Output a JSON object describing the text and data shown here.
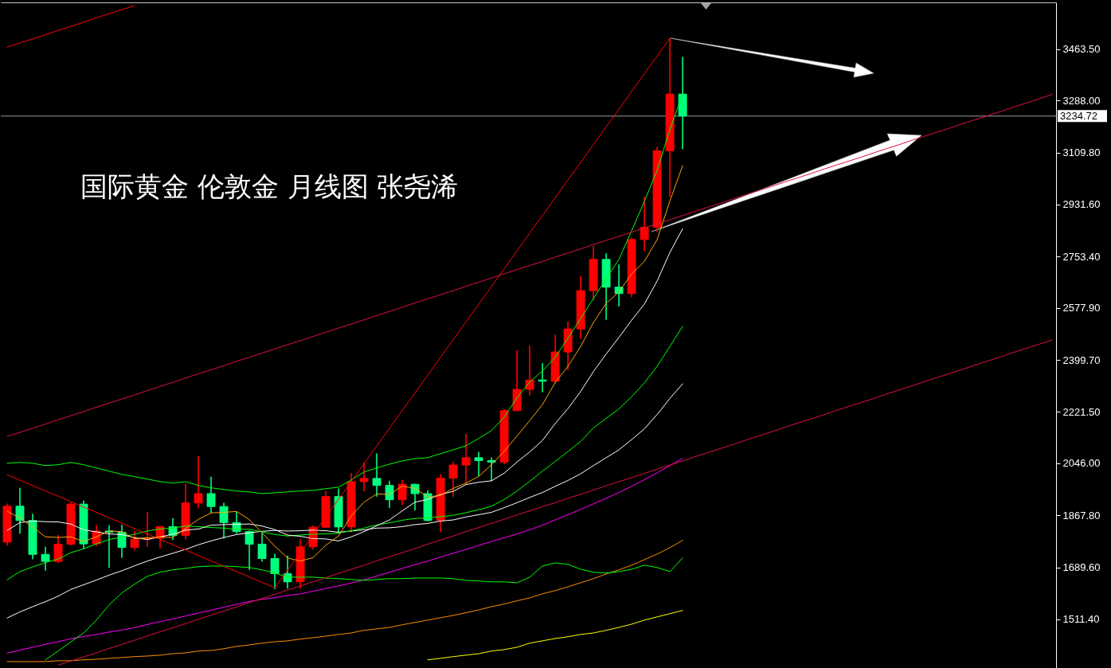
{
  "chart_data": {
    "type": "candlestick",
    "title": "国际黄金 伦敦金 月线图  张尧浠",
    "categories": [
      null,
      null,
      null,
      null,
      null,
      null,
      null,
      null,
      null,
      null,
      null,
      null,
      null,
      null,
      null,
      null,
      null,
      null,
      null,
      null,
      null,
      null,
      null,
      null,
      null,
      null,
      null,
      null,
      null,
      null,
      null,
      null,
      null,
      null,
      null,
      null,
      null,
      null,
      null,
      null,
      null,
      null,
      null,
      null,
      null,
      null,
      null,
      null,
      null,
      null,
      null,
      null,
      null,
      null,
      null,
      null,
      null,
      null,
      null,
      null,
      null,
      null,
      null,
      null,
      null,
      null,
      null,
      null,
      null,
      null,
      null,
      null,
      null,
      null,
      null,
      null,
      null,
      null,
      null,
      null,
      null,
      null,
      null
    ],
    "ohlc": [
      [
        1776,
        1908,
        1764,
        1899
      ],
      [
        1899,
        1962,
        1805,
        1850
      ],
      [
        1850,
        1873,
        1717,
        1734
      ],
      [
        1734,
        1760,
        1678,
        1710
      ],
      [
        1710,
        1800,
        1705,
        1769
      ],
      [
        1769,
        1913,
        1765,
        1906
      ],
      [
        1906,
        1918,
        1751,
        1770
      ],
      [
        1770,
        1834,
        1762,
        1814
      ],
      [
        1814,
        1834,
        1688,
        1810
      ],
      [
        1810,
        1836,
        1722,
        1758
      ],
      [
        1758,
        1814,
        1747,
        1786
      ],
      [
        1786,
        1880,
        1760,
        1789
      ],
      [
        1789,
        1832,
        1754,
        1829
      ],
      [
        1829,
        1858,
        1783,
        1799
      ],
      [
        1799,
        1976,
        1785,
        1910
      ],
      [
        1910,
        2070,
        1892,
        1942
      ],
      [
        1942,
        2000,
        1876,
        1898
      ],
      [
        1898,
        1911,
        1788,
        1843
      ],
      [
        1843,
        1880,
        1805,
        1812
      ],
      [
        1812,
        1816,
        1681,
        1769
      ],
      [
        1769,
        1808,
        1709,
        1720
      ],
      [
        1720,
        1736,
        1615,
        1668
      ],
      [
        1668,
        1730,
        1617,
        1640
      ],
      [
        1640,
        1786,
        1616,
        1760
      ],
      [
        1760,
        1833,
        1750,
        1827
      ],
      [
        1827,
        1950,
        1825,
        1932
      ],
      [
        1932,
        1960,
        1805,
        1828
      ],
      [
        1828,
        2012,
        1810,
        1983
      ],
      [
        1983,
        2050,
        1950,
        1994
      ],
      [
        1994,
        2080,
        1932,
        1970
      ],
      [
        1970,
        1986,
        1893,
        1921
      ],
      [
        1921,
        1990,
        1903,
        1974
      ],
      [
        1974,
        1976,
        1885,
        1942
      ],
      [
        1942,
        1953,
        1847,
        1850
      ],
      [
        1850,
        2009,
        1810,
        1995
      ],
      [
        1995,
        2052,
        1932,
        2040
      ],
      [
        2040,
        2146,
        1975,
        2065
      ],
      [
        2065,
        2085,
        2002,
        2055
      ],
      [
        2055,
        2066,
        1985,
        2050
      ],
      [
        2050,
        2230,
        2042,
        2226
      ],
      [
        2226,
        2433,
        2226,
        2299
      ],
      [
        2299,
        2450,
        2278,
        2331
      ],
      [
        2331,
        2389,
        2289,
        2327
      ],
      [
        2327,
        2486,
        2319,
        2427
      ],
      [
        2427,
        2531,
        2365,
        2506
      ],
      [
        2506,
        2688,
        2472,
        2637
      ],
      [
        2637,
        2790,
        2604,
        2744
      ],
      [
        2744,
        2765,
        2537,
        2649
      ],
      [
        2649,
        2727,
        2583,
        2627
      ],
      [
        2627,
        2819,
        2615,
        2812
      ],
      [
        2812,
        2958,
        2772,
        2854
      ],
      [
        2854,
        3130,
        2838,
        3116
      ],
      [
        3116,
        3501,
        2958,
        3310
      ],
      [
        3310,
        3437,
        3121,
        3234.72
      ],
      null,
      null,
      null,
      null,
      null,
      null,
      null,
      null,
      null,
      null,
      null,
      null,
      null,
      null,
      null,
      null,
      null,
      null,
      null,
      null,
      null,
      null,
      null,
      null,
      null,
      null,
      null,
      null,
      null
    ],
    "colors": [
      "#ff0000",
      "#00ff7f",
      "#00ff7f",
      "#00ff7f",
      "#ff0000",
      "#ff0000",
      "#00ff7f",
      "#ff0000",
      "#00ff7f",
      "#00ff7f",
      "#ff0000",
      "#ff0000",
      "#ff0000",
      "#00ff7f",
      "#ff0000",
      "#ff0000",
      "#00ff7f",
      "#00ff7f",
      "#00ff7f",
      "#00ff7f",
      "#00ff7f",
      "#00ff7f",
      "#00ff7f",
      "#ff0000",
      "#ff0000",
      "#ff0000",
      "#00ff7f",
      "#ff0000",
      "#ff0000",
      "#00ff7f",
      "#00ff7f",
      "#ff0000",
      "#00ff7f",
      "#00ff7f",
      "#ff0000",
      "#ff0000",
      "#ff0000",
      "#00ff7f",
      "#00ff7f",
      "#ff0000",
      "#ff0000",
      "#ff0000",
      "#00ff7f",
      "#ff0000",
      "#ff0000",
      "#ff0000",
      "#ff0000",
      "#00ff7f",
      "#00ff7f",
      "#ff0000",
      "#ff0000",
      "#ff0000",
      "#ff0000",
      "#00ff7f",
      null,
      null,
      null,
      null,
      null,
      null,
      null,
      null,
      null,
      null,
      null,
      null,
      null,
      null,
      null,
      null,
      null,
      null,
      null,
      null,
      null,
      null,
      null,
      null,
      null,
      null,
      null,
      null,
      null
    ],
    "series": [
      {
        "type": "line",
        "color": "#ff8c00",
        "values": [
          1367,
          1367,
          1367,
          1367,
          1370,
          1370,
          1373,
          1375,
          1378,
          1381,
          1384,
          1386,
          1389,
          1394,
          1397,
          1403,
          1405,
          1411,
          1419,
          1424,
          1430,
          1435,
          1438,
          1444,
          1449,
          1454,
          1460,
          1465,
          1474,
          1479,
          1484,
          1493,
          1501,
          1509,
          1517,
          1525,
          1534,
          1544,
          1555,
          1564,
          1575,
          1585,
          1599,
          1610,
          1623,
          1637,
          1651,
          1667,
          1681,
          1697,
          1716,
          1735,
          1757,
          1782,
          null,
          null,
          null,
          null,
          null,
          null,
          null,
          null,
          null,
          null,
          null,
          null,
          null,
          null,
          null,
          null,
          null,
          null,
          null,
          null,
          null,
          null,
          null,
          null,
          null,
          null,
          null,
          null,
          null
        ]
      },
      {
        "type": "line",
        "color": "#ffff00",
        "values": [
          null,
          null,
          null,
          null,
          null,
          null,
          null,
          null,
          null,
          null,
          null,
          null,
          null,
          null,
          null,
          null,
          null,
          null,
          null,
          null,
          null,
          null,
          null,
          null,
          null,
          null,
          null,
          null,
          null,
          null,
          null,
          null,
          null,
          1373,
          1378,
          1384,
          1389,
          1394,
          1403,
          1408,
          1416,
          1430,
          1438,
          1446,
          1452,
          1460,
          1465,
          1474,
          1484,
          1495,
          1509,
          1520,
          1531,
          1542,
          null,
          null,
          null,
          null,
          null,
          null,
          null,
          null,
          null,
          null,
          null,
          null,
          null,
          null,
          null,
          null,
          null,
          null,
          null,
          null,
          null,
          null,
          null,
          null,
          null,
          null,
          null,
          null,
          null
        ]
      },
      {
        "type": "line",
        "color": "#ff00ff",
        "values": [
          1396,
          1406,
          1416,
          1426,
          1435,
          1445,
          1453,
          1460,
          1468,
          1475,
          1483,
          1494,
          1504,
          1513,
          1523,
          1533,
          1543,
          1553,
          1563,
          1573,
          1580,
          1586,
          1593,
          1599,
          1608,
          1617,
          1626,
          1636,
          1647,
          1660,
          1673,
          1686,
          1699,
          1711,
          1725,
          1738,
          1751,
          1765,
          1778,
          1791,
          1804,
          1818,
          1834,
          1852,
          1870,
          1888,
          1907,
          1926,
          1946,
          1967,
          1990,
          2013,
          2038,
          2063,
          null,
          null,
          null,
          null,
          null,
          null,
          null,
          null,
          null,
          null,
          null,
          null,
          null,
          null,
          null,
          null,
          null,
          null,
          null,
          null,
          null,
          null,
          null,
          null,
          null,
          null,
          null,
          null,
          null
        ]
      },
      {
        "type": "line",
        "color": "#ffffff",
        "values": [
          1516,
          1537,
          1555,
          1572,
          1591,
          1614,
          1630,
          1646,
          1663,
          1678,
          1695,
          1711,
          1725,
          1738,
          1751,
          1767,
          1780,
          1792,
          1802,
          1808,
          1813,
          1816,
          1814,
          1815,
          1817,
          1815,
          1810,
          1814,
          1818,
          1824,
          1825,
          1829,
          1836,
          1840,
          1848,
          1852,
          1862,
          1870,
          1878,
          1894,
          1911,
          1929,
          1946,
          1967,
          1987,
          2010,
          2038,
          2065,
          2092,
          2127,
          2164,
          2213,
          2268,
          2318,
          null,
          null,
          null,
          null,
          null,
          null,
          null,
          null,
          null,
          null,
          null,
          null,
          null,
          null,
          null,
          null,
          null,
          null,
          null,
          null,
          null,
          null,
          null,
          null,
          null,
          null,
          null,
          null,
          null
        ]
      },
      {
        "type": "line",
        "color": "#00ff00",
        "values": [
          null,
          null,
          null,
          1373,
          1403,
          1435,
          1465,
          1509,
          1561,
          1602,
          1632,
          1659,
          1673,
          1681,
          1686,
          1692,
          1694,
          1694,
          1692,
          1689,
          1681,
          1670,
          1656,
          1656,
          1656,
          1653,
          1651,
          1648,
          1645,
          1648,
          1651,
          1651,
          1653,
          1653,
          1653,
          1651,
          1645,
          1643,
          1640,
          1640,
          1637,
          1656,
          1694,
          1705,
          1700,
          1683,
          1673,
          1670,
          1675,
          1683,
          1697,
          1689,
          1675,
          1722,
          null,
          null,
          null,
          null,
          null,
          null,
          null,
          null,
          null,
          null,
          null,
          null,
          null,
          null,
          null,
          null,
          null,
          null,
          null,
          null,
          null,
          null,
          null,
          null,
          null,
          null,
          null,
          null,
          null
        ]
      },
      {
        "type": "line",
        "color": "#00ff00",
        "values": [
          2046,
          2049,
          2046,
          2038,
          2041,
          2049,
          2041,
          2030,
          2019,
          2008,
          2000,
          1992,
          1983,
          1978,
          1983,
          1970,
          1962,
          1956,
          1951,
          1948,
          1942,
          1945,
          1948,
          1951,
          1953,
          1959,
          1964,
          1989,
          2016,
          2030,
          2043,
          2054,
          2062,
          2065,
          2079,
          2092,
          2106,
          2131,
          2158,
          2204,
          2270,
          2324,
          2362,
          2409,
          2474,
          2542,
          2610,
          2678,
          2744,
          2842,
          2943,
          3049,
          3188,
          3311,
          null,
          null,
          null,
          null,
          null,
          null,
          null,
          null,
          null,
          null,
          null,
          null,
          null,
          null,
          null,
          null,
          null,
          null,
          null,
          null,
          null,
          null,
          null,
          null,
          null,
          null,
          null,
          null,
          null
        ]
      },
      {
        "type": "line",
        "color": "#00ff00",
        "values": [
          1647,
          1675,
          1691,
          1706,
          1718,
          1740,
          1753,
          1770,
          1785,
          1793,
          1803,
          1814,
          1821,
          1824,
          1831,
          1829,
          1826,
          1824,
          1820,
          1820,
          1811,
          1802,
          1797,
          1800,
          1803,
          1804,
          1807,
          1815,
          1824,
          1835,
          1842,
          1851,
          1857,
          1859,
          1863,
          1868,
          1877,
          1887,
          1899,
          1922,
          1951,
          1984,
          2019,
          2052,
          2086,
          2121,
          2167,
          2200,
          2232,
          2274,
          2321,
          2378,
          2446,
          2515,
          null,
          null,
          null,
          null,
          null,
          null,
          null,
          null,
          null,
          null,
          null,
          null,
          null,
          null,
          null,
          null,
          null,
          null,
          null,
          null,
          null,
          null,
          null,
          null,
          null,
          null,
          null,
          null,
          null
        ]
      },
      {
        "type": "line",
        "color": "#ffffff",
        "values": [
          1816,
          1843,
          1848,
          1846,
          1845,
          1838,
          1818,
          1811,
          1804,
          1802,
          1791,
          1785,
          1794,
          1803,
          1817,
          1821,
          1834,
          1836,
          1837,
          1838,
          1831,
          1819,
          1800,
          1796,
          1788,
          1787,
          1780,
          1794,
          1812,
          1832,
          1852,
          1883,
          1913,
          1922,
          1939,
          1950,
          1973,
          1981,
          1986,
          2012,
          2050,
          2085,
          2124,
          2182,
          2233,
          2292,
          2360,
          2420,
          2477,
          2536,
          2591,
          2670,
          2768,
          2849,
          null,
          null,
          null,
          null,
          null,
          null,
          null,
          null,
          null,
          null,
          null,
          null,
          null,
          null,
          null,
          null,
          null,
          null,
          null,
          null,
          null,
          null,
          null,
          null,
          null,
          null,
          null,
          null,
          null
        ]
      },
      {
        "type": "line",
        "color": "#ffa500",
        "values": [
          1882,
          1858,
          1828,
          1794,
          1792,
          1794,
          1778,
          1794,
          1814,
          1812,
          1788,
          1791,
          1794,
          1792,
          1823,
          1854,
          1876,
          1878,
          1881,
          1853,
          1808,
          1762,
          1722,
          1711,
          1723,
          1765,
          1797,
          1866,
          1913,
          1941,
          1939,
          1968,
          1960,
          1931,
          1936,
          1960,
          1978,
          2001,
          2041,
          2087,
          2139,
          2192,
          2247,
          2322,
          2378,
          2446,
          2528,
          2593,
          2633,
          2694,
          2737,
          2812,
          2944,
          3065,
          null,
          null,
          null,
          null,
          null,
          null,
          null,
          null,
          null,
          null,
          null,
          null,
          null,
          null,
          null,
          null,
          null,
          null,
          null,
          null,
          null,
          null,
          null,
          null,
          null,
          null,
          null,
          null,
          null
        ]
      },
      {
        "type": "line",
        "color": "#ff0000",
        "values": [
          3471,
          3485,
          3499,
          3513,
          3528,
          3542,
          3556,
          3571,
          3585,
          3599,
          3613,
          null,
          null,
          null,
          null,
          null,
          null,
          null,
          null,
          null,
          null,
          null,
          null,
          null,
          null,
          null,
          null,
          null,
          null,
          null,
          null,
          null,
          null,
          null,
          null,
          null,
          null,
          null,
          null,
          null,
          null,
          null,
          null,
          null,
          null,
          null,
          null,
          null,
          null,
          null,
          null,
          null,
          null,
          null,
          null,
          null,
          null,
          null,
          null,
          null,
          null,
          null,
          null,
          null,
          null,
          null,
          null,
          null,
          null,
          null,
          null,
          null,
          null,
          null,
          null,
          null,
          null,
          null,
          null,
          null,
          null,
          null,
          null
        ]
      },
      {
        "type": "line",
        "color": "#dc143c",
        "values": [
          2138,
          2152,
          2166,
          2180,
          2195,
          2209,
          2223,
          2238,
          2252,
          2266,
          2280,
          2295,
          2309,
          2323,
          2338,
          2352,
          2366,
          2380,
          2395,
          2409,
          2423,
          2438,
          2452,
          2466,
          2480,
          2495,
          2509,
          2523,
          2537,
          2552,
          2566,
          2580,
          2595,
          2609,
          2623,
          2637,
          2652,
          2666,
          2680,
          2695,
          2709,
          2723,
          2737,
          2752,
          2766,
          2780,
          2795,
          2809,
          2823,
          2837,
          2852,
          2866,
          2880,
          2894,
          2909,
          2923,
          2937,
          2952,
          2966,
          2980,
          2994,
          3009,
          3023,
          3037,
          3052,
          3066,
          3080,
          3094,
          3109,
          3123,
          3137,
          3152,
          3166,
          3180,
          3194,
          3209,
          3223,
          3237,
          3251,
          3266,
          3280,
          3294,
          3309
        ]
      },
      {
        "type": "line",
        "color": "#dc143c",
        "values": [
          null,
          null,
          null,
          null,
          1355,
          1369,
          1383,
          1397,
          1412,
          1426,
          1440,
          1455,
          1469,
          1483,
          1497,
          1512,
          1526,
          1540,
          1554,
          1569,
          1583,
          1597,
          1612,
          1626,
          1640,
          1654,
          1669,
          1683,
          1697,
          1712,
          1726,
          1740,
          1754,
          1769,
          1783,
          1797,
          1812,
          1826,
          1840,
          1854,
          1869,
          1883,
          1897,
          1911,
          1926,
          1940,
          1954,
          1969,
          1983,
          1997,
          2011,
          2026,
          2040,
          2054,
          2069,
          2083,
          2097,
          2111,
          2126,
          2140,
          2154,
          2169,
          2183,
          2197,
          2211,
          2226,
          2240,
          2254,
          2268,
          2283,
          2297,
          2311,
          2326,
          2340,
          2354,
          2368,
          2383,
          2397,
          2411,
          2426,
          2440,
          2454,
          2468
        ]
      },
      {
        "type": "line",
        "color": "#ff0000",
        "values": [
          2007,
          1988,
          1970,
          1951,
          1933,
          1915,
          1896,
          1878,
          1859,
          1841,
          1822,
          1804,
          1786,
          1767,
          1749,
          1730,
          1712,
          1693,
          1675,
          1657,
          1638,
          1620,
          null,
          null,
          null,
          null,
          null,
          null,
          null,
          null,
          null,
          null,
          null,
          null,
          null,
          null,
          null,
          null,
          null,
          null,
          null,
          null,
          null,
          null,
          null,
          null,
          null,
          null,
          null,
          null,
          null,
          null,
          null,
          null,
          null,
          null,
          null,
          null,
          null,
          null,
          null,
          null,
          null,
          null,
          null,
          null,
          null,
          null,
          null,
          null,
          null,
          null,
          null,
          null,
          null,
          null,
          null,
          null,
          null,
          null,
          null,
          null,
          null
        ]
      },
      {
        "type": "line",
        "color": "#ff0000",
        "values": [
          null,
          null,
          null,
          null,
          null,
          null,
          null,
          null,
          null,
          null,
          null,
          null,
          null,
          null,
          null,
          null,
          null,
          null,
          null,
          null,
          null,
          1620,
          1680,
          1741,
          1802,
          1862,
          1923,
          1984,
          2045,
          2105,
          2166,
          2227,
          2287,
          2348,
          2409,
          2469,
          2530,
          2591,
          2651,
          2712,
          2773,
          2834,
          2894,
          2955,
          3016,
          3076,
          3137,
          3198,
          3258,
          3319,
          3380,
          3440,
          3501,
          null,
          null,
          null,
          null,
          null,
          null,
          null,
          null,
          null,
          null,
          null,
          null,
          null,
          null,
          null,
          null,
          null,
          null,
          null,
          null,
          null,
          null,
          null,
          null,
          null,
          null,
          null,
          null,
          null,
          null
        ]
      }
    ],
    "ylim": [
      1345,
      3624
    ],
    "yticks": [
      {
        "value": 1511.4,
        "label": "1511.40"
      },
      {
        "value": 1689.6,
        "label": "1689.60"
      },
      {
        "value": 1867.8,
        "label": "1867.80"
      },
      {
        "value": 2046,
        "label": "2046.00"
      },
      {
        "value": 2221.5,
        "label": "2221.50"
      },
      {
        "value": 2399.7,
        "label": "2399.70"
      },
      {
        "value": 2577.9,
        "label": "2577.90"
      },
      {
        "value": 2753.4,
        "label": "2753.40"
      },
      {
        "value": 2931.6,
        "label": "2931.60"
      },
      {
        "value": 3109.8,
        "label": "3109.80"
      },
      {
        "value": 3288,
        "label": "3288.00"
      },
      {
        "value": 3463.5,
        "label": "3463.50"
      }
    ],
    "tick_labels": "y",
    "ref_lines": [
      {
        "axis": "y",
        "value": 3234.72,
        "label": "3234.72",
        "color": "#9a9aa6"
      }
    ]
  }
}
